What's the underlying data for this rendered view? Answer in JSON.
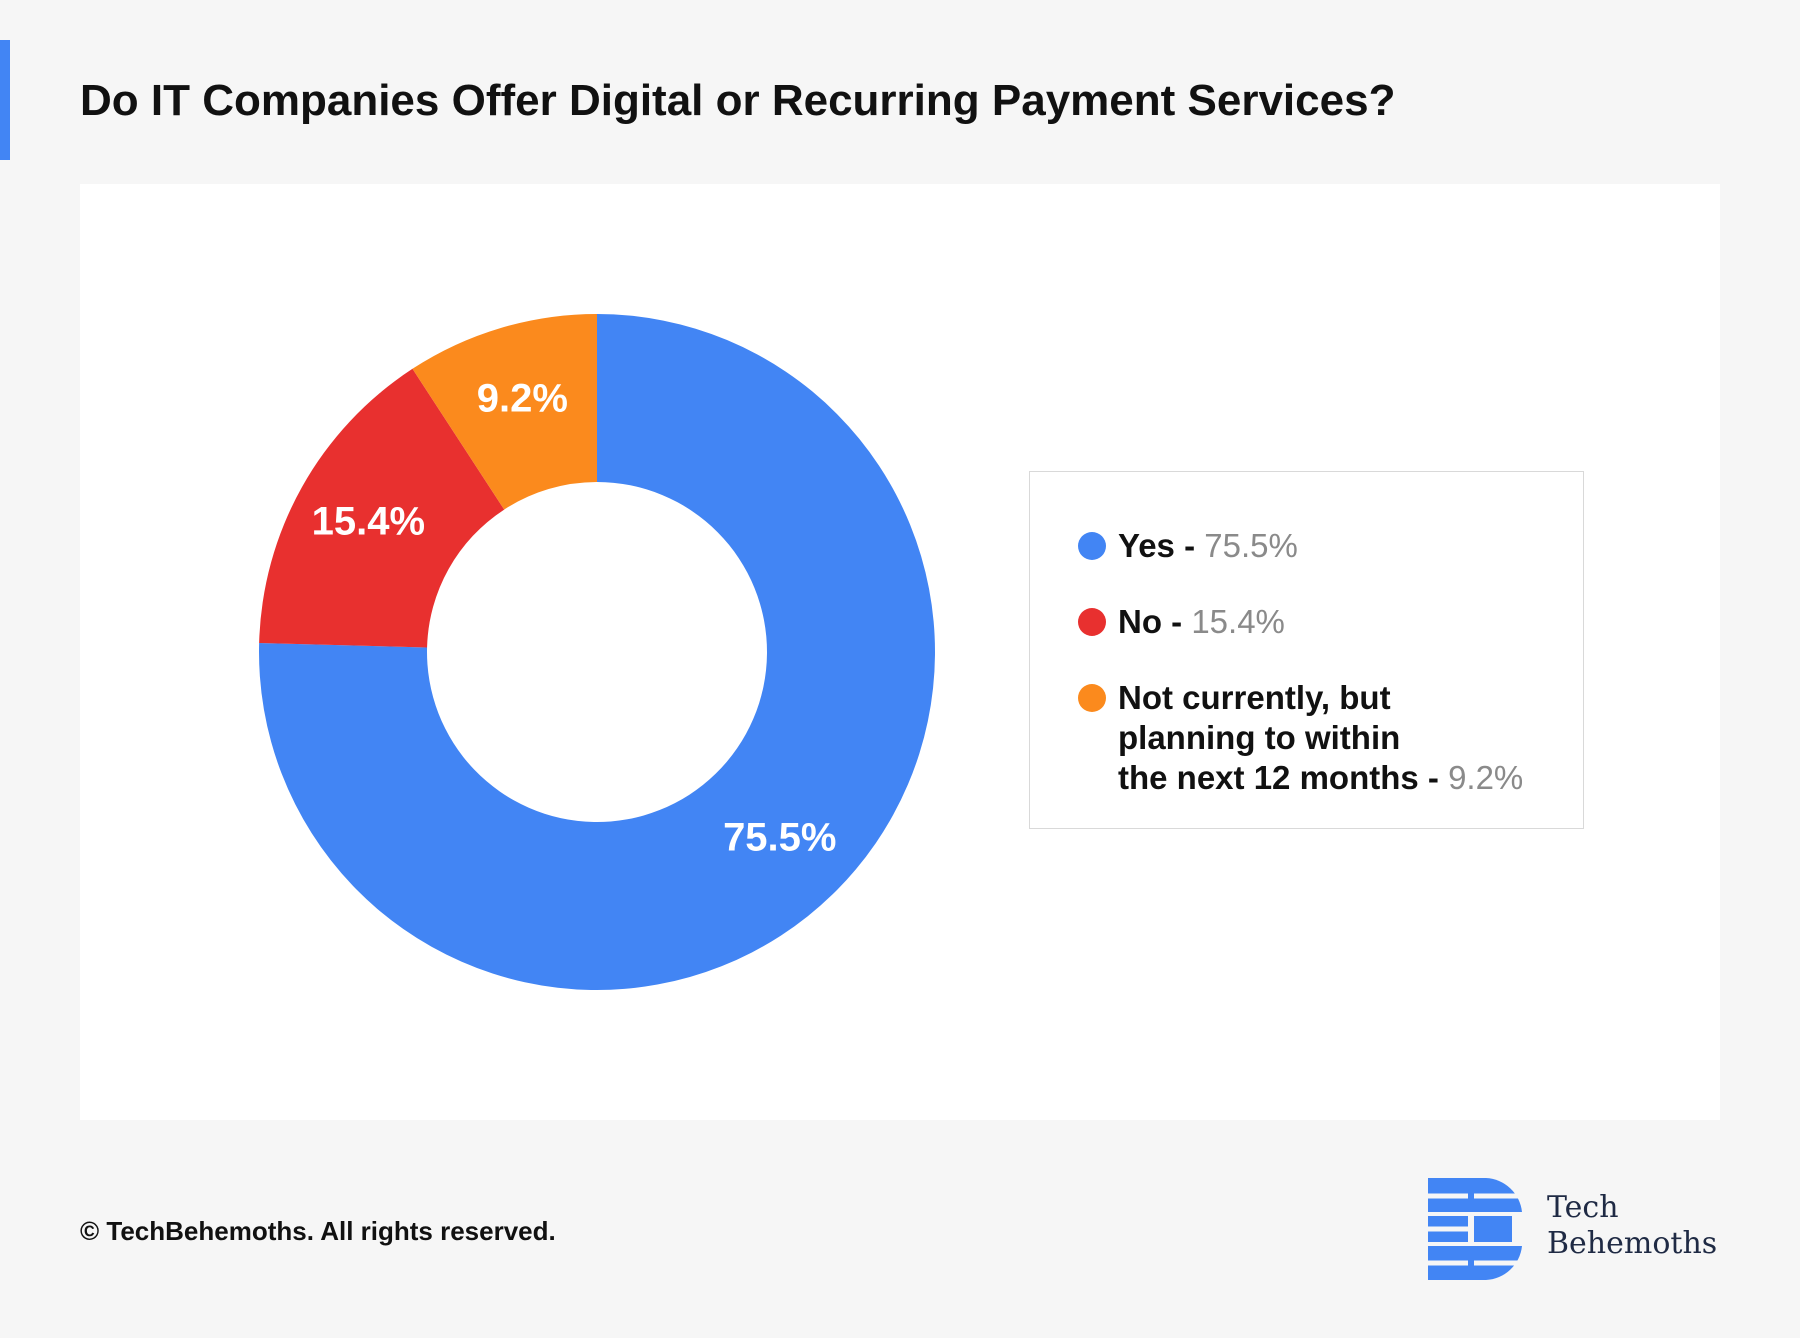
{
  "title": "Do IT Companies Offer Digital or Recurring Payment Services?",
  "copyright": "© TechBehemoths. All rights reserved.",
  "brand": {
    "line1": "Tech",
    "line2": "Behemoths",
    "color": "#4285f4",
    "text_color": "#1f2a44"
  },
  "colors": {
    "accent": "#4285f4",
    "background": "#f6f6f6",
    "card": "#ffffff"
  },
  "chart_data": {
    "type": "pie",
    "variant": "donut",
    "title": "Do IT Companies Offer Digital or Recurring Payment Services?",
    "slices": [
      {
        "label": "Yes",
        "value": 75.5,
        "display": "75.5%",
        "color": "#4285f4"
      },
      {
        "label": "No",
        "value": 15.4,
        "display": "15.4%",
        "color": "#e8302f"
      },
      {
        "label": "Not currently, but\nplanning to within\nthe next 12 months",
        "value": 9.2,
        "display": "9.2%",
        "color": "#fb8a1d"
      }
    ],
    "legend_placement": "right"
  },
  "legend": {
    "items": [
      {
        "label": "Yes",
        "sep": " - ",
        "value": "75.5%"
      },
      {
        "label": "No",
        "sep": " - ",
        "value": "15.4%"
      },
      {
        "label": "Not currently, but\nplanning to within\nthe next 12 months",
        "sep": " - ",
        "value": "9.2%"
      }
    ]
  }
}
